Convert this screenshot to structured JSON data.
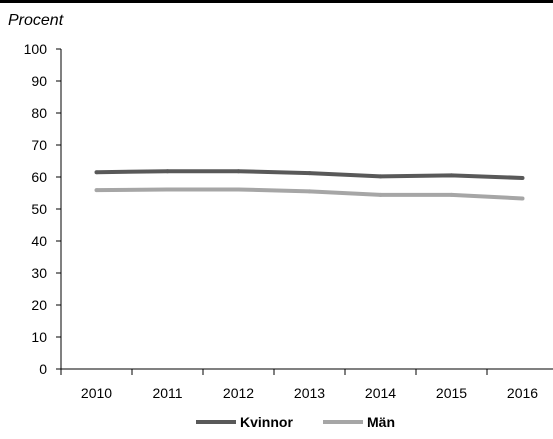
{
  "chart_data": {
    "type": "line",
    "title": "",
    "ylabel": "Procent",
    "xlabel": "",
    "x": [
      "2010",
      "2011",
      "2012",
      "2013",
      "2014",
      "2015",
      "2016"
    ],
    "ylim": [
      0,
      100
    ],
    "yticks": [
      0,
      10,
      20,
      30,
      40,
      50,
      60,
      70,
      80,
      90,
      100
    ],
    "grid": false,
    "legend_position": "bottom-center",
    "series": [
      {
        "name": "Kvinnor",
        "color": "#595959",
        "values": [
          61.5,
          61.8,
          61.8,
          61.2,
          60.2,
          60.5,
          59.7
        ]
      },
      {
        "name": "Män",
        "color": "#a6a6a6",
        "values": [
          55.9,
          56.1,
          56.1,
          55.5,
          54.4,
          54.4,
          53.3
        ]
      }
    ]
  }
}
